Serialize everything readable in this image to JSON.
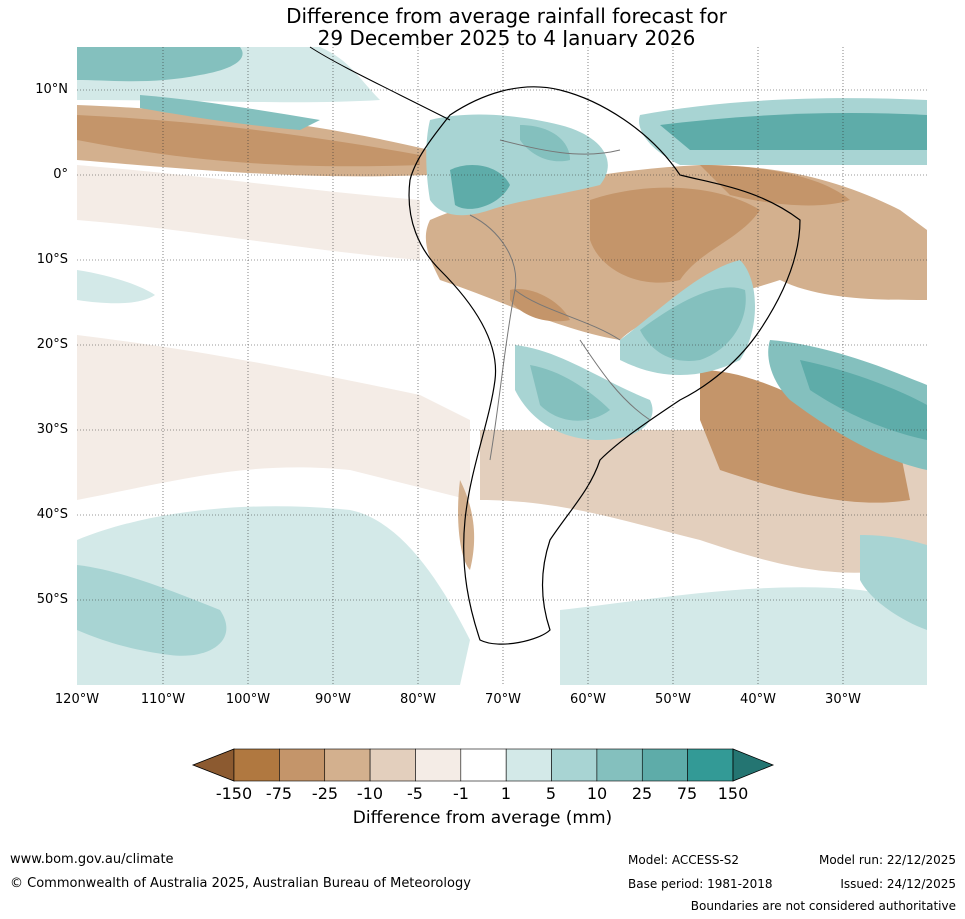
{
  "title": {
    "line1": "Difference from average rainfall forecast for",
    "line2": "29 December 2025 to 4 January 2026"
  },
  "axes": {
    "lat_labels": [
      "10°N",
      "0°",
      "10°S",
      "20°S",
      "30°S",
      "40°S",
      "50°S"
    ],
    "lon_labels": [
      "120°W",
      "110°W",
      "100°W",
      "90°W",
      "80°W",
      "70°W",
      "60°W",
      "50°W",
      "40°W",
      "30°W"
    ]
  },
  "colorbar": {
    "title": "Difference from average (mm)",
    "labels": [
      "-150",
      "-75",
      "-25",
      "-10",
      "-5",
      "-1",
      "1",
      "5",
      "10",
      "25",
      "75",
      "150"
    ],
    "colors": [
      "#8c5a30",
      "#b07840",
      "#c4956a",
      "#d3b08e",
      "#e3cfbd",
      "#f4ece6",
      "#ffffff",
      "#d3e9e8",
      "#a8d4d3",
      "#84c0be",
      "#5eaca9",
      "#339a96",
      "#247572"
    ]
  },
  "footer": {
    "website": "www.bom.gov.au/climate",
    "copyright": "© Commonwealth of Australia 2025, Australian Bureau of Meteorology",
    "model": "Model: ACCESS-S2",
    "base_period": "Base period: 1981-2018",
    "model_run": "Model run: 22/12/2025",
    "issued": "Issued: 24/12/2025",
    "disclaimer": "Boundaries are not considered authoritative"
  }
}
